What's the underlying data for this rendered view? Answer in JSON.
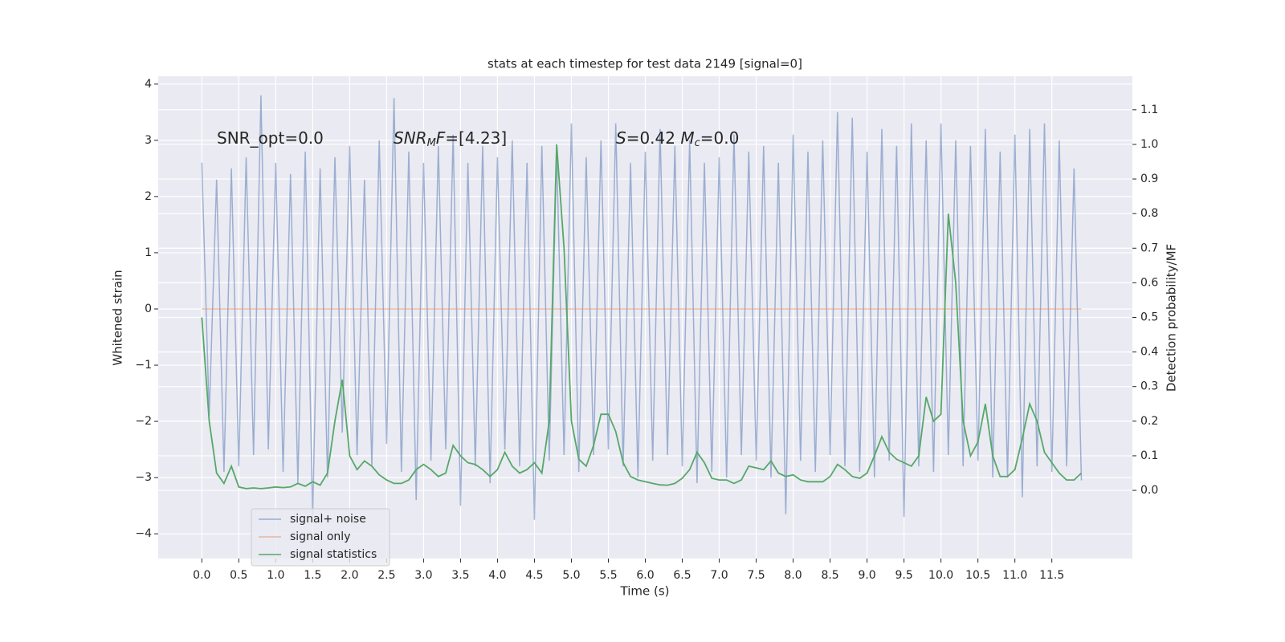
{
  "chart_data": {
    "type": "line",
    "title": "stats at each timestep for test data 2149 [signal=0]",
    "xlabel": "Time (s)",
    "ylabel": "Whitened strain",
    "y2label": "Detection probability/MF",
    "annotations": [
      [
        "SNR_opt=0.0"
      ],
      [
        "SNR",
        "M",
        "F",
        "=[4.23]"
      ],
      [
        "S",
        "=0.42   ",
        "M",
        "c",
        "=0.0"
      ]
    ],
    "grid": true,
    "legend": "lower left",
    "xlim": [
      -0.59,
      12.59
    ],
    "ylim": [
      -4.44,
      4.14
    ],
    "y2lim": [
      -0.197,
      1.197
    ],
    "xticks": [
      {
        "value": 0,
        "label": "0.0"
      },
      0.5,
      {
        "value": 1,
        "label": "1.0"
      },
      1.5,
      {
        "value": 2,
        "label": "2.0"
      },
      2.5,
      {
        "value": 3,
        "label": "3.0"
      },
      3.5,
      {
        "value": 4,
        "label": "4.0"
      },
      4.5,
      {
        "value": 5,
        "label": "5.0"
      },
      5.5,
      {
        "value": 6,
        "label": "6.0"
      },
      6.5,
      {
        "value": 7,
        "label": "7.0"
      },
      7.5,
      {
        "value": 8,
        "label": "8.0"
      },
      8.5,
      {
        "value": 9,
        "label": "9.0"
      },
      9.5,
      {
        "value": 10,
        "label": "10.0"
      },
      10.5,
      {
        "value": 11,
        "label": "11.0"
      },
      11.5
    ],
    "yticks": [
      {
        "value": -4,
        "label": "−4"
      },
      {
        "value": -3,
        "label": "−3"
      },
      {
        "value": -2,
        "label": "−2"
      },
      {
        "value": -1,
        "label": "−1"
      },
      0,
      1,
      2,
      3,
      4
    ],
    "y2ticks": [
      {
        "value": 0,
        "label": "0.0"
      },
      0.1,
      0.2,
      0.3,
      0.4,
      0.5,
      0.6,
      0.7,
      0.8,
      0.9,
      {
        "value": 1,
        "label": "1.0"
      },
      1.1
    ],
    "x": [
      0,
      0.1,
      0.2,
      0.3,
      0.4,
      0.5,
      0.6,
      0.7,
      0.8,
      0.9,
      1,
      1.1,
      1.2,
      1.3,
      1.4,
      1.5,
      1.6,
      1.7,
      1.8,
      1.9,
      2,
      2.1,
      2.2,
      2.3,
      2.4,
      2.5,
      2.6,
      2.7,
      2.8,
      2.9,
      3,
      3.1,
      3.2,
      3.3,
      3.4,
      3.5,
      3.6,
      3.7,
      3.8,
      3.9,
      4,
      4.1,
      4.2,
      4.3,
      4.4,
      4.5,
      4.6,
      4.7,
      4.8,
      4.9,
      5,
      5.1,
      5.2,
      5.3,
      5.4,
      5.5,
      5.6,
      5.7,
      5.8,
      5.9,
      6,
      6.1,
      6.2,
      6.3,
      6.4,
      6.5,
      6.6,
      6.7,
      6.8,
      6.9,
      7,
      7.1,
      7.2,
      7.3,
      7.4,
      7.5,
      7.6,
      7.7,
      7.8,
      7.9,
      8,
      8.1,
      8.2,
      8.3,
      8.4,
      8.5,
      8.6,
      8.7,
      8.8,
      8.9,
      9,
      9.1,
      9.2,
      9.3,
      9.4,
      9.5,
      9.6,
      9.7,
      9.8,
      9.9,
      10,
      10.1,
      10.2,
      10.3,
      10.4,
      10.5,
      10.6,
      10.7,
      10.8,
      10.9,
      11,
      11.1,
      11.2,
      11.3,
      11.4,
      11.5,
      11.6,
      11.7,
      11.8,
      11.9
    ],
    "series": [
      {
        "name": "signal+ noise",
        "color": "#4c72b0",
        "values": [
          2.6,
          -1.9,
          2.3,
          -2.9,
          2.5,
          -2.8,
          2.7,
          -2.6,
          3.8,
          -2.5,
          2.6,
          -2.9,
          2.4,
          -3.1,
          2.8,
          -3.7,
          2.5,
          -3.0,
          2.7,
          -2.2,
          2.9,
          -2.6,
          2.3,
          -2.8,
          3.0,
          -2.4,
          3.75,
          -2.9,
          2.8,
          -3.4,
          2.6,
          -2.7,
          2.9,
          -2.5,
          3.1,
          -3.5,
          2.6,
          -2.8,
          2.9,
          -3.1,
          2.7,
          -2.5,
          3.0,
          -2.8,
          2.6,
          -3.75,
          2.9,
          -2.7,
          2.8,
          -2.6,
          3.3,
          -2.9,
          2.7,
          -2.6,
          3.0,
          -2.5,
          3.3,
          -2.8,
          2.6,
          -3.0,
          2.8,
          -2.7,
          3.2,
          -2.6,
          2.9,
          -2.8,
          3.0,
          -3.1,
          2.6,
          -2.9,
          2.7,
          -3.0,
          3.1,
          -2.6,
          2.8,
          -2.7,
          2.9,
          -3.0,
          2.6,
          -3.65,
          3.1,
          -2.7,
          2.8,
          -2.9,
          3.0,
          -2.6,
          3.5,
          -2.8,
          3.4,
          -2.9,
          2.8,
          -3.0,
          3.2,
          -2.7,
          2.9,
          -3.7,
          3.3,
          -2.8,
          3.0,
          -2.9,
          3.3,
          -2.6,
          3.0,
          -2.8,
          2.9,
          -2.7,
          3.2,
          -3.0,
          2.8,
          -3.0,
          3.1,
          -3.35,
          3.2,
          -2.8,
          3.3,
          -2.9,
          3.0,
          -2.8,
          2.5,
          -3.05
        ]
      },
      {
        "name": "signal only",
        "color": "#dd8452",
        "values": [
          0,
          0,
          0,
          0,
          0,
          0,
          0,
          0,
          0,
          0,
          0,
          0,
          0,
          0,
          0,
          0,
          0,
          0,
          0,
          0,
          0,
          0,
          0,
          0,
          0,
          0,
          0,
          0,
          0,
          0,
          0,
          0,
          0,
          0,
          0,
          0,
          0,
          0,
          0,
          0,
          0,
          0,
          0,
          0,
          0,
          0,
          0,
          0,
          0,
          0,
          0,
          0,
          0,
          0,
          0,
          0,
          0,
          0,
          0,
          0,
          0,
          0,
          0,
          0,
          0,
          0,
          0,
          0,
          0,
          0,
          0,
          0,
          0,
          0,
          0,
          0,
          0,
          0,
          0,
          0,
          0,
          0,
          0,
          0,
          0,
          0,
          0,
          0,
          0,
          0,
          0,
          0,
          0,
          0,
          0,
          0,
          0,
          0,
          0,
          0,
          0,
          0,
          0,
          0,
          0,
          0,
          0,
          0,
          0,
          0,
          0,
          0,
          0,
          0,
          0,
          0,
          0,
          0,
          0,
          0
        ]
      },
      {
        "name": "signal statistics",
        "color": "#55a868",
        "axis": "y2",
        "values": [
          0.5,
          0.2,
          0.05,
          0.02,
          0.07,
          0.01,
          0.005,
          0.007,
          0.005,
          0.007,
          0.01,
          0.008,
          0.01,
          0.02,
          0.012,
          0.025,
          0.015,
          0.05,
          0.2,
          0.32,
          0.1,
          0.06,
          0.085,
          0.07,
          0.045,
          0.03,
          0.02,
          0.02,
          0.03,
          0.06,
          0.075,
          0.06,
          0.04,
          0.05,
          0.13,
          0.1,
          0.08,
          0.075,
          0.06,
          0.04,
          0.06,
          0.11,
          0.07,
          0.05,
          0.06,
          0.08,
          0.05,
          0.2,
          1.0,
          0.7,
          0.2,
          0.09,
          0.07,
          0.13,
          0.22,
          0.22,
          0.17,
          0.08,
          0.04,
          0.03,
          0.025,
          0.02,
          0.016,
          0.015,
          0.02,
          0.035,
          0.06,
          0.11,
          0.08,
          0.035,
          0.03,
          0.03,
          0.02,
          0.03,
          0.07,
          0.065,
          0.06,
          0.085,
          0.05,
          0.04,
          0.045,
          0.03,
          0.025,
          0.025,
          0.025,
          0.04,
          0.075,
          0.06,
          0.04,
          0.035,
          0.05,
          0.1,
          0.155,
          0.11,
          0.09,
          0.08,
          0.07,
          0.1,
          0.27,
          0.2,
          0.22,
          0.8,
          0.6,
          0.2,
          0.1,
          0.14,
          0.25,
          0.1,
          0.04,
          0.04,
          0.06,
          0.15,
          0.25,
          0.2,
          0.11,
          0.08,
          0.05,
          0.03,
          0.03,
          0.05
        ]
      }
    ]
  }
}
